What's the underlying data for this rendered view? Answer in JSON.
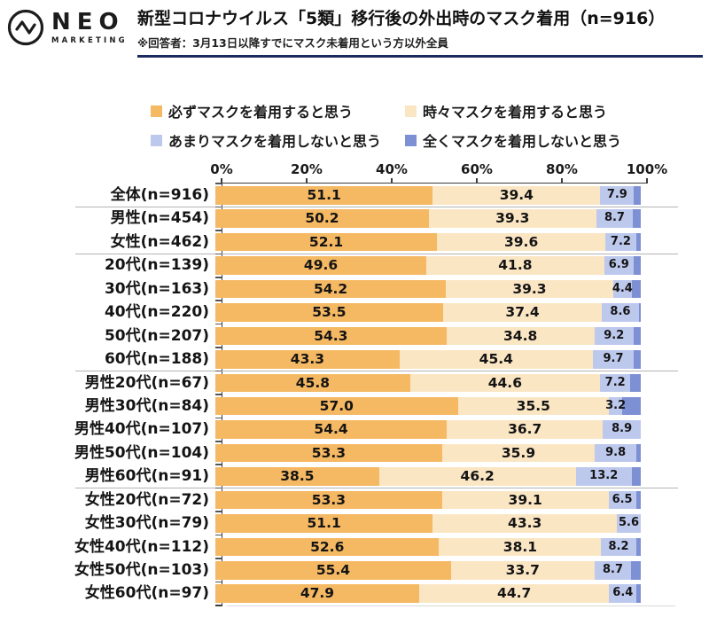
{
  "header": {
    "brand": {
      "name": "NEO",
      "sub": "MARKETING"
    },
    "title": "新型コロナウイルス「5類」移行後の外出時のマスク着用（n=916）",
    "note": "※回答者：3月13日以降すでにマスク未着用という方以外全員"
  },
  "colors": {
    "always": "#F5B863",
    "sometimes": "#FBE6C4",
    "rarely": "#BDC8ED",
    "never": "#7D90D4",
    "title_underline": "#1C2A5E",
    "axis": "#3C3C3C",
    "separator": "#B3B3B3"
  },
  "chart_data": {
    "type": "bar",
    "stacked": true,
    "orientation": "horizontal",
    "unit": "%",
    "title": "新型コロナウイルス「5類」移行後の外出時のマスク着用（n=916）",
    "x_axis": {
      "tick_labels": [
        "0%",
        "20%",
        "40%",
        "60%",
        "80%",
        "100%"
      ],
      "range": [
        0,
        100
      ],
      "grid": false
    },
    "legend_position": "top",
    "legend": [
      {
        "label": "必ずマスクを着用すると思う",
        "color": "#F5B863"
      },
      {
        "label": "時々マスクを着用すると思う",
        "color": "#FBE6C4"
      },
      {
        "label": "あまりマスクを着用しないと思う",
        "color": "#BDC8ED"
      },
      {
        "label": "全くマスクを着用しないと思う",
        "color": "#7D90D4"
      }
    ],
    "categories": [
      "全体(n=916)",
      "男性(n=454)",
      "女性(n=462)",
      "20代(n=139)",
      "30代(n=163)",
      "40代(n=220)",
      "50代(n=207)",
      "60代(n=188)",
      "男性20代(n=67)",
      "男性30代(n=84)",
      "男性40代(n=107)",
      "男性50代(n=104)",
      "男性60代(n=91)",
      "女性20代(n=72)",
      "女性30代(n=79)",
      "女性40代(n=112)",
      "女性50代(n=103)",
      "女性60代(n=97)"
    ],
    "series": [
      {
        "name": "必ずマスクを着用すると思う",
        "show_labels": true,
        "values": [
          51.1,
          50.2,
          52.1,
          49.6,
          54.2,
          53.5,
          54.3,
          43.3,
          45.8,
          57.0,
          54.4,
          53.3,
          38.5,
          53.3,
          51.1,
          52.6,
          55.4,
          47.9
        ]
      },
      {
        "name": "時々マスクを着用すると思う",
        "show_labels": true,
        "values": [
          39.4,
          39.3,
          39.6,
          41.8,
          39.3,
          37.4,
          34.8,
          45.4,
          44.6,
          35.5,
          36.7,
          35.9,
          46.2,
          39.1,
          43.3,
          38.1,
          33.7,
          44.7
        ]
      },
      {
        "name": "あまりマスクを着用しないと思う",
        "show_labels": true,
        "values": [
          7.9,
          8.7,
          7.2,
          6.9,
          4.4,
          8.6,
          9.2,
          9.7,
          7.2,
          3.2,
          8.9,
          9.8,
          13.2,
          6.5,
          5.6,
          8.2,
          8.7,
          6.4
        ]
      },
      {
        "name": "全くマスクを着用しないと思う",
        "show_labels": false,
        "values_inferred_as_remainder": true,
        "values": [
          1.6,
          1.8,
          1.1,
          1.7,
          2.1,
          0.5,
          1.7,
          1.6,
          2.4,
          4.3,
          0.0,
          1.0,
          2.1,
          1.1,
          0.0,
          1.1,
          2.2,
          1.0
        ]
      }
    ],
    "group_separators_after": [
      0,
      2,
      7,
      12
    ]
  }
}
